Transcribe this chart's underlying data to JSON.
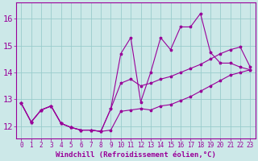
{
  "background_color": "#cce8e8",
  "grid_color": "#99cccc",
  "line_color": "#990099",
  "marker": "*",
  "xlabel": "Windchill (Refroidissement éolien,°C)",
  "xlabel_fontsize": 6.5,
  "xtick_labels": [
    "0",
    "1",
    "2",
    "3",
    "4",
    "5",
    "6",
    "7",
    "8",
    "9",
    "10",
    "11",
    "12",
    "13",
    "14",
    "15",
    "16",
    "17",
    "18",
    "19",
    "20",
    "21",
    "22",
    "23"
  ],
  "ytick_values": [
    12,
    13,
    14,
    15,
    16
  ],
  "ylim": [
    11.55,
    16.6
  ],
  "xlim": [
    -0.5,
    23.5
  ],
  "series1_x": [
    0,
    1,
    2,
    3,
    4,
    5,
    6,
    7,
    8,
    9,
    10,
    11,
    12,
    13,
    14,
    15,
    16,
    17,
    18,
    19,
    20,
    21,
    22,
    23
  ],
  "series1_y": [
    12.85,
    12.15,
    12.6,
    12.75,
    12.1,
    11.95,
    11.85,
    11.85,
    11.8,
    11.85,
    12.55,
    12.6,
    12.65,
    12.6,
    12.75,
    12.8,
    12.95,
    13.1,
    13.3,
    13.5,
    13.7,
    13.9,
    14.0,
    14.1
  ],
  "series2_x": [
    0,
    1,
    2,
    3,
    4,
    5,
    6,
    7,
    8,
    9,
    10,
    11,
    12,
    13,
    14,
    15,
    16,
    17,
    18,
    19,
    20,
    21,
    22,
    23
  ],
  "series2_y": [
    12.85,
    12.15,
    12.6,
    12.75,
    12.1,
    11.95,
    11.85,
    11.85,
    11.8,
    12.65,
    13.6,
    13.75,
    13.5,
    13.6,
    13.75,
    13.85,
    14.0,
    14.15,
    14.3,
    14.5,
    14.7,
    14.85,
    14.95,
    14.2
  ],
  "series3_x": [
    0,
    1,
    2,
    3,
    4,
    5,
    6,
    7,
    8,
    9,
    10,
    11,
    12,
    13,
    14,
    15,
    16,
    17,
    18,
    19,
    20,
    21,
    22,
    23
  ],
  "series3_y": [
    12.85,
    12.15,
    12.6,
    12.75,
    12.1,
    11.95,
    11.85,
    11.85,
    11.8,
    12.65,
    14.7,
    15.3,
    12.9,
    14.0,
    15.3,
    14.85,
    15.7,
    15.7,
    16.2,
    14.75,
    14.35,
    14.35,
    14.2,
    14.1
  ],
  "tick_color": "#990099",
  "tick_fontsize": 5.5,
  "ytick_fontsize": 7.5
}
